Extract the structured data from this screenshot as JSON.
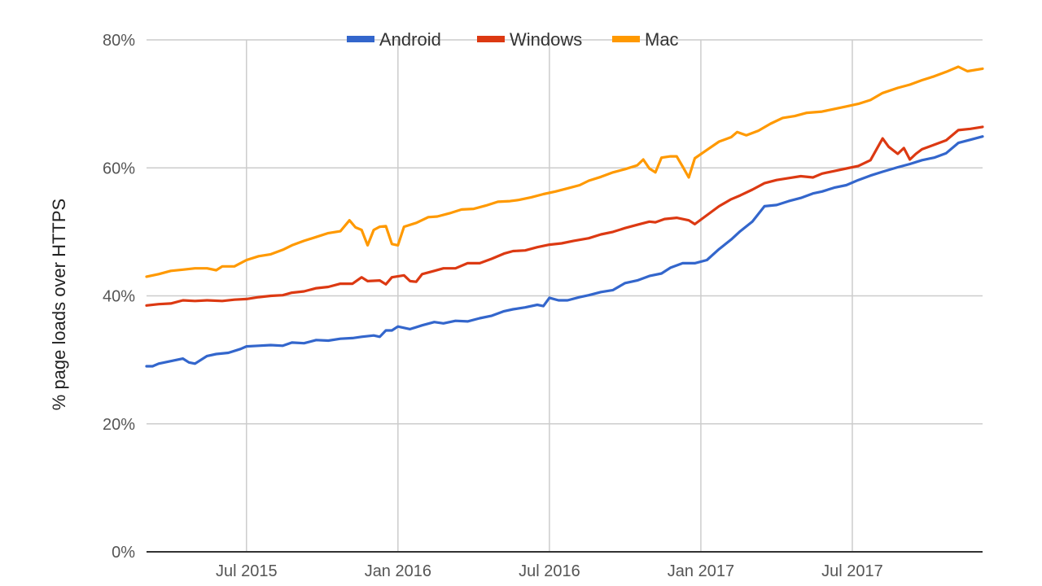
{
  "chart_data": {
    "type": "line",
    "title": "",
    "xlabel": "",
    "ylabel": "% page loads over HTTPS",
    "ylim": [
      0,
      80
    ],
    "y_ticks": [
      {
        "value": 0,
        "label": "0%"
      },
      {
        "value": 20,
        "label": "20%"
      },
      {
        "value": 40,
        "label": "40%"
      },
      {
        "value": 60,
        "label": "60%"
      },
      {
        "value": 80,
        "label": "80%"
      }
    ],
    "x_range_months": [
      2015.17,
      2017.93
    ],
    "x_ticks": [
      {
        "value": 2015.5,
        "label": "Jul 2015"
      },
      {
        "value": 2016.0,
        "label": "Jan 2016"
      },
      {
        "value": 2016.5,
        "label": "Jul 2016"
      },
      {
        "value": 2017.0,
        "label": "Jan 2017"
      },
      {
        "value": 2017.5,
        "label": "Jul 2017"
      }
    ],
    "grid": true,
    "legend_position": "top-center",
    "series": [
      {
        "name": "Android",
        "color": "#3366cc",
        "points": [
          [
            2015.17,
            29.0
          ],
          [
            2015.19,
            29.0
          ],
          [
            2015.21,
            29.4
          ],
          [
            2015.25,
            29.8
          ],
          [
            2015.29,
            30.2
          ],
          [
            2015.31,
            29.6
          ],
          [
            2015.33,
            29.4
          ],
          [
            2015.37,
            30.6
          ],
          [
            2015.4,
            30.9
          ],
          [
            2015.44,
            31.1
          ],
          [
            2015.48,
            31.7
          ],
          [
            2015.5,
            32.1
          ],
          [
            2015.54,
            32.2
          ],
          [
            2015.58,
            32.3
          ],
          [
            2015.62,
            32.2
          ],
          [
            2015.65,
            32.7
          ],
          [
            2015.69,
            32.6
          ],
          [
            2015.73,
            33.1
          ],
          [
            2015.77,
            33.0
          ],
          [
            2015.81,
            33.3
          ],
          [
            2015.85,
            33.4
          ],
          [
            2015.88,
            33.6
          ],
          [
            2015.92,
            33.8
          ],
          [
            2015.94,
            33.6
          ],
          [
            2015.96,
            34.6
          ],
          [
            2015.98,
            34.6
          ],
          [
            2016.0,
            35.2
          ],
          [
            2016.04,
            34.8
          ],
          [
            2016.08,
            35.4
          ],
          [
            2016.12,
            35.9
          ],
          [
            2016.15,
            35.7
          ],
          [
            2016.19,
            36.1
          ],
          [
            2016.23,
            36.0
          ],
          [
            2016.27,
            36.5
          ],
          [
            2016.31,
            36.9
          ],
          [
            2016.35,
            37.6
          ],
          [
            2016.38,
            37.9
          ],
          [
            2016.42,
            38.2
          ],
          [
            2016.46,
            38.6
          ],
          [
            2016.48,
            38.4
          ],
          [
            2016.5,
            39.7
          ],
          [
            2016.53,
            39.3
          ],
          [
            2016.56,
            39.3
          ],
          [
            2016.6,
            39.8
          ],
          [
            2016.63,
            40.1
          ],
          [
            2016.67,
            40.6
          ],
          [
            2016.71,
            40.9
          ],
          [
            2016.75,
            42.0
          ],
          [
            2016.79,
            42.4
          ],
          [
            2016.83,
            43.1
          ],
          [
            2016.87,
            43.5
          ],
          [
            2016.9,
            44.4
          ],
          [
            2016.94,
            45.1
          ],
          [
            2016.98,
            45.1
          ],
          [
            2017.02,
            45.6
          ],
          [
            2017.06,
            47.3
          ],
          [
            2017.1,
            48.8
          ],
          [
            2017.13,
            50.1
          ],
          [
            2017.17,
            51.6
          ],
          [
            2017.21,
            54.0
          ],
          [
            2017.25,
            54.2
          ],
          [
            2017.29,
            54.8
          ],
          [
            2017.33,
            55.3
          ],
          [
            2017.37,
            56.0
          ],
          [
            2017.4,
            56.3
          ],
          [
            2017.44,
            56.9
          ],
          [
            2017.48,
            57.3
          ],
          [
            2017.52,
            58.1
          ],
          [
            2017.56,
            58.8
          ],
          [
            2017.6,
            59.4
          ],
          [
            2017.65,
            60.1
          ],
          [
            2017.69,
            60.6
          ],
          [
            2017.73,
            61.2
          ],
          [
            2017.77,
            61.6
          ],
          [
            2017.81,
            62.3
          ],
          [
            2017.85,
            63.9
          ],
          [
            2017.89,
            64.4
          ],
          [
            2017.93,
            64.9
          ]
        ]
      },
      {
        "name": "Windows",
        "color": "#dc3912",
        "points": [
          [
            2015.17,
            38.5
          ],
          [
            2015.21,
            38.7
          ],
          [
            2015.25,
            38.8
          ],
          [
            2015.29,
            39.3
          ],
          [
            2015.33,
            39.2
          ],
          [
            2015.37,
            39.3
          ],
          [
            2015.42,
            39.2
          ],
          [
            2015.46,
            39.4
          ],
          [
            2015.5,
            39.5
          ],
          [
            2015.54,
            39.8
          ],
          [
            2015.58,
            40.0
          ],
          [
            2015.62,
            40.1
          ],
          [
            2015.65,
            40.5
          ],
          [
            2015.69,
            40.7
          ],
          [
            2015.73,
            41.2
          ],
          [
            2015.77,
            41.4
          ],
          [
            2015.81,
            41.9
          ],
          [
            2015.85,
            41.9
          ],
          [
            2015.88,
            42.9
          ],
          [
            2015.9,
            42.3
          ],
          [
            2015.94,
            42.4
          ],
          [
            2015.96,
            41.8
          ],
          [
            2015.98,
            42.9
          ],
          [
            2016.02,
            43.2
          ],
          [
            2016.04,
            42.3
          ],
          [
            2016.06,
            42.2
          ],
          [
            2016.08,
            43.4
          ],
          [
            2016.12,
            43.9
          ],
          [
            2016.15,
            44.3
          ],
          [
            2016.19,
            44.3
          ],
          [
            2016.23,
            45.1
          ],
          [
            2016.27,
            45.1
          ],
          [
            2016.31,
            45.8
          ],
          [
            2016.35,
            46.6
          ],
          [
            2016.38,
            47.0
          ],
          [
            2016.42,
            47.1
          ],
          [
            2016.46,
            47.6
          ],
          [
            2016.5,
            48.0
          ],
          [
            2016.54,
            48.2
          ],
          [
            2016.58,
            48.6
          ],
          [
            2016.63,
            49.0
          ],
          [
            2016.67,
            49.6
          ],
          [
            2016.71,
            50.0
          ],
          [
            2016.75,
            50.6
          ],
          [
            2016.79,
            51.1
          ],
          [
            2016.83,
            51.6
          ],
          [
            2016.85,
            51.5
          ],
          [
            2016.88,
            52.0
          ],
          [
            2016.92,
            52.2
          ],
          [
            2016.96,
            51.8
          ],
          [
            2016.98,
            51.2
          ],
          [
            2017.02,
            52.6
          ],
          [
            2017.06,
            54.0
          ],
          [
            2017.1,
            55.1
          ],
          [
            2017.13,
            55.7
          ],
          [
            2017.17,
            56.6
          ],
          [
            2017.21,
            57.6
          ],
          [
            2017.25,
            58.1
          ],
          [
            2017.29,
            58.4
          ],
          [
            2017.33,
            58.7
          ],
          [
            2017.37,
            58.5
          ],
          [
            2017.4,
            59.1
          ],
          [
            2017.44,
            59.5
          ],
          [
            2017.48,
            59.9
          ],
          [
            2017.52,
            60.3
          ],
          [
            2017.56,
            61.2
          ],
          [
            2017.6,
            64.6
          ],
          [
            2017.62,
            63.3
          ],
          [
            2017.65,
            62.2
          ],
          [
            2017.67,
            63.1
          ],
          [
            2017.69,
            61.3
          ],
          [
            2017.71,
            62.2
          ],
          [
            2017.73,
            62.9
          ],
          [
            2017.77,
            63.6
          ],
          [
            2017.81,
            64.3
          ],
          [
            2017.85,
            65.9
          ],
          [
            2017.89,
            66.1
          ],
          [
            2017.93,
            66.4
          ]
        ]
      },
      {
        "name": "Mac",
        "color": "#ff9900",
        "points": [
          [
            2015.17,
            43.0
          ],
          [
            2015.21,
            43.4
          ],
          [
            2015.25,
            43.9
          ],
          [
            2015.29,
            44.1
          ],
          [
            2015.33,
            44.3
          ],
          [
            2015.37,
            44.3
          ],
          [
            2015.4,
            44.0
          ],
          [
            2015.42,
            44.6
          ],
          [
            2015.46,
            44.6
          ],
          [
            2015.5,
            45.6
          ],
          [
            2015.54,
            46.2
          ],
          [
            2015.58,
            46.5
          ],
          [
            2015.62,
            47.2
          ],
          [
            2015.65,
            47.9
          ],
          [
            2015.69,
            48.6
          ],
          [
            2015.73,
            49.2
          ],
          [
            2015.77,
            49.8
          ],
          [
            2015.81,
            50.1
          ],
          [
            2015.84,
            51.8
          ],
          [
            2015.86,
            50.7
          ],
          [
            2015.88,
            50.3
          ],
          [
            2015.9,
            47.9
          ],
          [
            2015.92,
            50.3
          ],
          [
            2015.94,
            50.8
          ],
          [
            2015.96,
            50.9
          ],
          [
            2015.98,
            48.1
          ],
          [
            2016.0,
            47.9
          ],
          [
            2016.02,
            50.8
          ],
          [
            2016.06,
            51.4
          ],
          [
            2016.1,
            52.3
          ],
          [
            2016.13,
            52.4
          ],
          [
            2016.17,
            52.9
          ],
          [
            2016.21,
            53.5
          ],
          [
            2016.25,
            53.6
          ],
          [
            2016.29,
            54.1
          ],
          [
            2016.33,
            54.7
          ],
          [
            2016.37,
            54.8
          ],
          [
            2016.4,
            55.0
          ],
          [
            2016.44,
            55.4
          ],
          [
            2016.48,
            55.9
          ],
          [
            2016.52,
            56.3
          ],
          [
            2016.56,
            56.8
          ],
          [
            2016.6,
            57.3
          ],
          [
            2016.63,
            58.0
          ],
          [
            2016.67,
            58.6
          ],
          [
            2016.71,
            59.3
          ],
          [
            2016.75,
            59.8
          ],
          [
            2016.79,
            60.4
          ],
          [
            2016.81,
            61.3
          ],
          [
            2016.83,
            59.9
          ],
          [
            2016.85,
            59.3
          ],
          [
            2016.87,
            61.6
          ],
          [
            2016.9,
            61.8
          ],
          [
            2016.92,
            61.8
          ],
          [
            2016.94,
            60.2
          ],
          [
            2016.96,
            58.5
          ],
          [
            2016.98,
            61.5
          ],
          [
            2017.02,
            62.8
          ],
          [
            2017.06,
            64.1
          ],
          [
            2017.1,
            64.8
          ],
          [
            2017.12,
            65.6
          ],
          [
            2017.15,
            65.1
          ],
          [
            2017.19,
            65.8
          ],
          [
            2017.23,
            66.9
          ],
          [
            2017.27,
            67.8
          ],
          [
            2017.31,
            68.1
          ],
          [
            2017.35,
            68.6
          ],
          [
            2017.4,
            68.8
          ],
          [
            2017.44,
            69.2
          ],
          [
            2017.48,
            69.6
          ],
          [
            2017.52,
            70.0
          ],
          [
            2017.56,
            70.6
          ],
          [
            2017.6,
            71.7
          ],
          [
            2017.65,
            72.5
          ],
          [
            2017.69,
            73.0
          ],
          [
            2017.73,
            73.7
          ],
          [
            2017.77,
            74.3
          ],
          [
            2017.81,
            75.0
          ],
          [
            2017.85,
            75.8
          ],
          [
            2017.88,
            75.1
          ],
          [
            2017.93,
            75.5
          ]
        ]
      }
    ]
  }
}
